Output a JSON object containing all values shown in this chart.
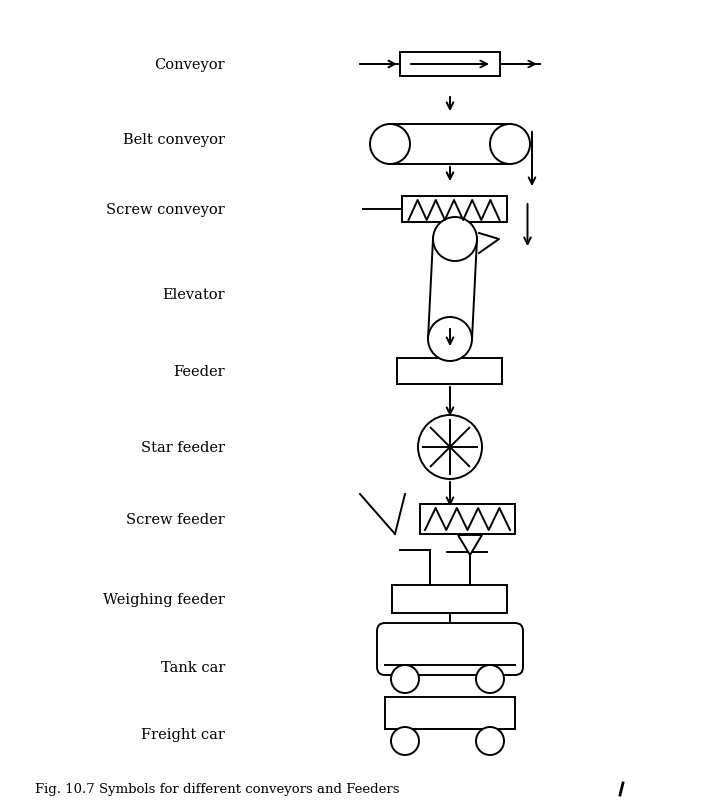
{
  "title": "Fig. 10.7 Symbols for different conveyors and Feeders",
  "labels": [
    "Conveyor",
    "Belt conveyor",
    "Screw conveyor",
    "Elevator",
    "Feeder",
    "Star feeder",
    "Screw feeder",
    "Weighing feeder",
    "Tank car",
    "Freight car"
  ],
  "bg_color": "#ffffff",
  "line_color": "#000000",
  "lw": 1.4,
  "fontsize": 10.5,
  "fig_width": 7.05,
  "fig_height": 8.04,
  "dpi": 100
}
